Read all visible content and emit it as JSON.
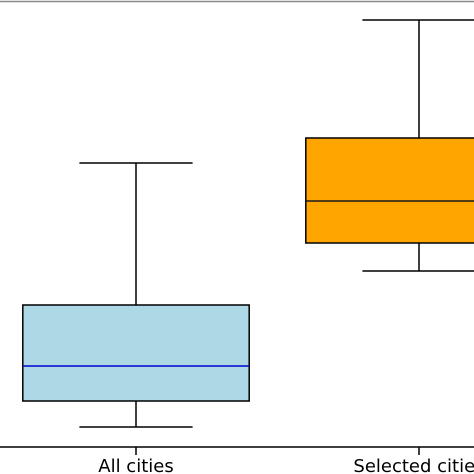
{
  "chart_data": {
    "type": "box",
    "categories": [
      "All cities",
      "Selected cities"
    ],
    "stats": [
      {
        "whislo": 20,
        "q1": 46,
        "med": 81,
        "q3": 142,
        "whishi": 284
      },
      {
        "whislo": 176,
        "q1": 204,
        "med": 246,
        "q3": 309,
        "whishi": 427
      }
    ],
    "colors": [
      "#add8e6",
      "#ffa500"
    ],
    "median_colors": [
      "#0000cd",
      "#1a1a1a"
    ],
    "ylim": [
      0,
      445
    ]
  }
}
